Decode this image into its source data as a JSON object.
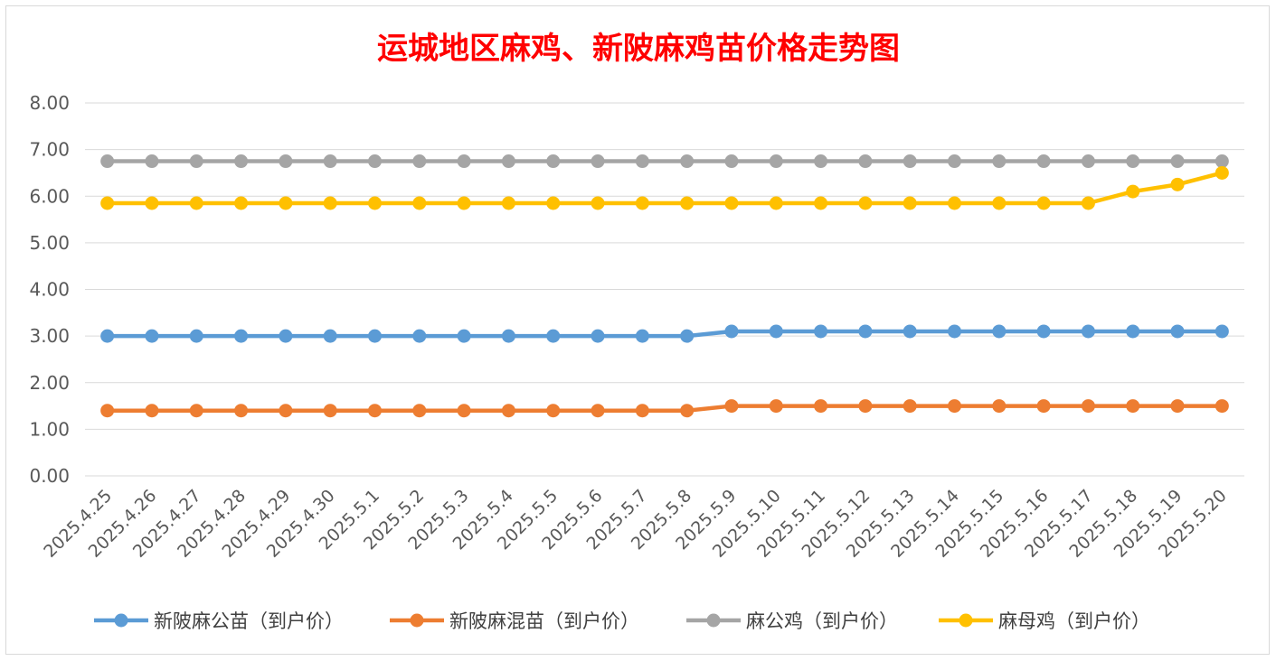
{
  "chart_data": {
    "type": "line",
    "title": "运城地区麻鸡、新陂麻鸡苗价格走势图",
    "xlabel": "",
    "ylabel": "",
    "ylim": [
      0,
      8
    ],
    "yticks": [
      "0.00",
      "1.00",
      "2.00",
      "3.00",
      "4.00",
      "5.00",
      "6.00",
      "7.00",
      "8.00"
    ],
    "grid": true,
    "legend_position": "bottom",
    "categories": [
      "2025.4.25",
      "2025.4.26",
      "2025.4.27",
      "2025.4.28",
      "2025.4.29",
      "2025.4.30",
      "2025.5.1",
      "2025.5.2",
      "2025.5.3",
      "2025.5.4",
      "2025.5.5",
      "2025.5.6",
      "2025.5.7",
      "2025.5.8",
      "2025.5.9",
      "2025.5.10",
      "2025.5.11",
      "2025.5.12",
      "2025.5.13",
      "2025.5.14",
      "2025.5.15",
      "2025.5.16",
      "2025.5.17",
      "2025.5.18",
      "2025.5.19",
      "2025.5.20"
    ],
    "series": [
      {
        "name": "新陂麻公苗（到户价）",
        "color": "#5b9bd5",
        "values": [
          3.0,
          3.0,
          3.0,
          3.0,
          3.0,
          3.0,
          3.0,
          3.0,
          3.0,
          3.0,
          3.0,
          3.0,
          3.0,
          3.0,
          3.1,
          3.1,
          3.1,
          3.1,
          3.1,
          3.1,
          3.1,
          3.1,
          3.1,
          3.1,
          3.1,
          3.1
        ]
      },
      {
        "name": "新陂麻混苗（到户价）",
        "color": "#ed7d31",
        "values": [
          1.4,
          1.4,
          1.4,
          1.4,
          1.4,
          1.4,
          1.4,
          1.4,
          1.4,
          1.4,
          1.4,
          1.4,
          1.4,
          1.4,
          1.5,
          1.5,
          1.5,
          1.5,
          1.5,
          1.5,
          1.5,
          1.5,
          1.5,
          1.5,
          1.5,
          1.5
        ]
      },
      {
        "name": "麻公鸡（到户价）",
        "color": "#a5a5a5",
        "values": [
          6.75,
          6.75,
          6.75,
          6.75,
          6.75,
          6.75,
          6.75,
          6.75,
          6.75,
          6.75,
          6.75,
          6.75,
          6.75,
          6.75,
          6.75,
          6.75,
          6.75,
          6.75,
          6.75,
          6.75,
          6.75,
          6.75,
          6.75,
          6.75,
          6.75,
          6.75
        ]
      },
      {
        "name": "麻母鸡（到户价）",
        "color": "#ffc000",
        "values": [
          5.85,
          5.85,
          5.85,
          5.85,
          5.85,
          5.85,
          5.85,
          5.85,
          5.85,
          5.85,
          5.85,
          5.85,
          5.85,
          5.85,
          5.85,
          5.85,
          5.85,
          5.85,
          5.85,
          5.85,
          5.85,
          5.85,
          5.85,
          6.1,
          6.25,
          6.5
        ]
      }
    ]
  }
}
